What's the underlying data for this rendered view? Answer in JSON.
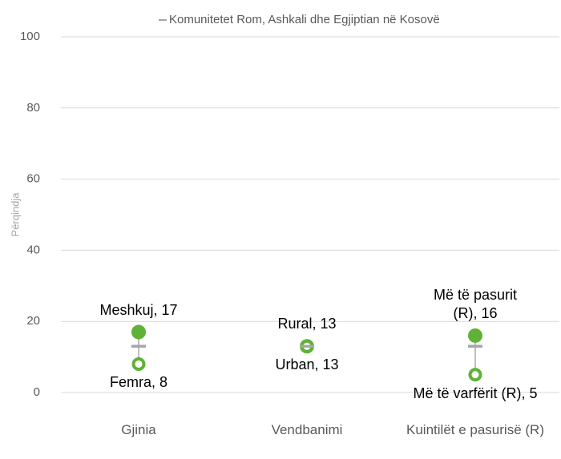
{
  "chart_data": {
    "type": "dot-range",
    "y_label": "Përqindja",
    "categories": [
      "Gjinia",
      "Vendbanimi",
      "Kuintilët e pasurisë (R)"
    ],
    "series": [
      {
        "color": "#5fb236",
        "marker": "filled",
        "values": [
          17,
          13,
          16
        ],
        "value_labels": [
          "Meshkuj, 17",
          "Rural, 13",
          "Më të pasurit (R), 16"
        ]
      },
      {
        "color": "#5fb236",
        "marker": "open",
        "values": [
          8,
          13,
          5
        ],
        "value_labels": [
          "Femra, 8",
          "Urban, 13",
          "Më të varfërit (R), 5"
        ]
      },
      {
        "name": "Komunitetet Rom, Ashkali dhe Egjiptian në Kosovë",
        "color": "#a6a6a6",
        "marker": "dash",
        "values": [
          13,
          13,
          13
        ]
      }
    ],
    "ylim": [
      0,
      100
    ],
    "yticks": [
      0,
      20,
      40,
      60,
      80,
      100
    ],
    "grid": true,
    "legend": "top"
  }
}
